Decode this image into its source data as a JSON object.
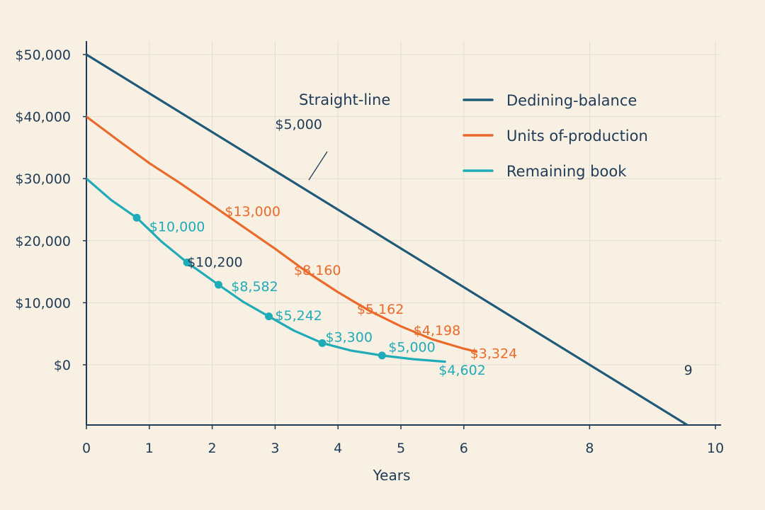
{
  "chart_data": {
    "type": "line",
    "title": "",
    "xlabel": "Years",
    "ylabel": "",
    "xlim": [
      0,
      10
    ],
    "ylim": [
      -10000,
      50000
    ],
    "grid": true,
    "legend_placement": "top-right",
    "x_ticks": [
      {
        "value": 0,
        "label": "0"
      },
      {
        "value": 1,
        "label": "1"
      },
      {
        "value": 2,
        "label": "2"
      },
      {
        "value": 3,
        "label": "3"
      },
      {
        "value": 4,
        "label": "4"
      },
      {
        "value": 5,
        "label": "5"
      },
      {
        "value": 6,
        "label": "6"
      },
      {
        "value": 8,
        "label": "8"
      },
      {
        "value": 10,
        "label": "10"
      }
    ],
    "y_ticks": [
      {
        "value": 0,
        "label": "$0"
      },
      {
        "value": 10000,
        "label": "$10,000"
      },
      {
        "value": 20000,
        "label": "$20,000"
      },
      {
        "value": 30000,
        "label": "$30,000"
      },
      {
        "value": 40000,
        "label": "$40,000"
      },
      {
        "value": 50000,
        "label": "$50,000"
      }
    ],
    "straight_line_label": "Straight-line",
    "series": [
      {
        "name": "Dedining-balance",
        "color": "#1f5a7a",
        "markers": false,
        "points": [
          [
            0,
            50000
          ],
          [
            9.6,
            -10000
          ]
        ]
      },
      {
        "name": "Units of-production",
        "color": "#ea6a2c",
        "markers": false,
        "points": [
          [
            0,
            40000
          ],
          [
            0.5,
            36200
          ],
          [
            1,
            32500
          ],
          [
            1.5,
            29200
          ],
          [
            2,
            25700
          ],
          [
            2.5,
            22200
          ],
          [
            3,
            18700
          ],
          [
            3.5,
            15000
          ],
          [
            4,
            11700
          ],
          [
            4.5,
            8700
          ],
          [
            5,
            6200
          ],
          [
            5.5,
            4100
          ],
          [
            6,
            2600
          ],
          [
            6.2,
            2100
          ]
        ]
      },
      {
        "name": "Remaining book",
        "color": "#1fabb8",
        "markers": true,
        "points": [
          [
            0,
            30000
          ],
          [
            0.4,
            26500
          ],
          [
            0.8,
            23700
          ],
          [
            1.2,
            19800
          ],
          [
            1.6,
            16500
          ],
          [
            2.1,
            12900
          ],
          [
            2.5,
            10100
          ],
          [
            2.9,
            7800
          ],
          [
            3.3,
            5500
          ],
          [
            3.75,
            3500
          ],
          [
            4.2,
            2300
          ],
          [
            4.7,
            1500
          ],
          [
            5.2,
            900
          ],
          [
            5.7,
            500
          ]
        ],
        "marker_points": [
          [
            0.8,
            23700
          ],
          [
            1.6,
            16500
          ],
          [
            2.1,
            12900
          ],
          [
            2.9,
            7800
          ],
          [
            3.75,
            3500
          ],
          [
            4.7,
            1500
          ]
        ]
      }
    ],
    "annotations": [
      {
        "text": "$5,000",
        "x": 3.0,
        "y": 38000,
        "color": "#1f3b57"
      },
      {
        "text": "$13,000",
        "x": 2.2,
        "y": 24000,
        "color": "#ea6a2c"
      },
      {
        "text": "$8,160",
        "x": 3.3,
        "y": 14500,
        "color": "#ea6a2c"
      },
      {
        "text": "$5,162",
        "x": 4.3,
        "y": 8200,
        "color": "#ea6a2c"
      },
      {
        "text": "$4,198",
        "x": 5.2,
        "y": 4800,
        "color": "#ea6a2c"
      },
      {
        "text": "$3,324",
        "x": 6.1,
        "y": 1100,
        "color": "#ea6a2c"
      },
      {
        "text": "$10,000",
        "x": 1.0,
        "y": 21500,
        "color": "#1fabb8"
      },
      {
        "text": "$10,200",
        "x": 1.6,
        "y": 15800,
        "color": "#1f3b57"
      },
      {
        "text": "$8,582",
        "x": 2.3,
        "y": 11900,
        "color": "#1fabb8"
      },
      {
        "text": "$5,242",
        "x": 3.0,
        "y": 7200,
        "color": "#1fabb8"
      },
      {
        "text": "$3,300",
        "x": 3.8,
        "y": 3700,
        "color": "#1fabb8"
      },
      {
        "text": "$5,000",
        "x": 4.8,
        "y": 2100,
        "color": "#1fabb8"
      },
      {
        "text": "$4,602",
        "x": 5.6,
        "y": -1600,
        "color": "#1fabb8"
      },
      {
        "text": "9",
        "x": 9.5,
        "y": -1600,
        "color": "#1f3b57"
      }
    ]
  }
}
